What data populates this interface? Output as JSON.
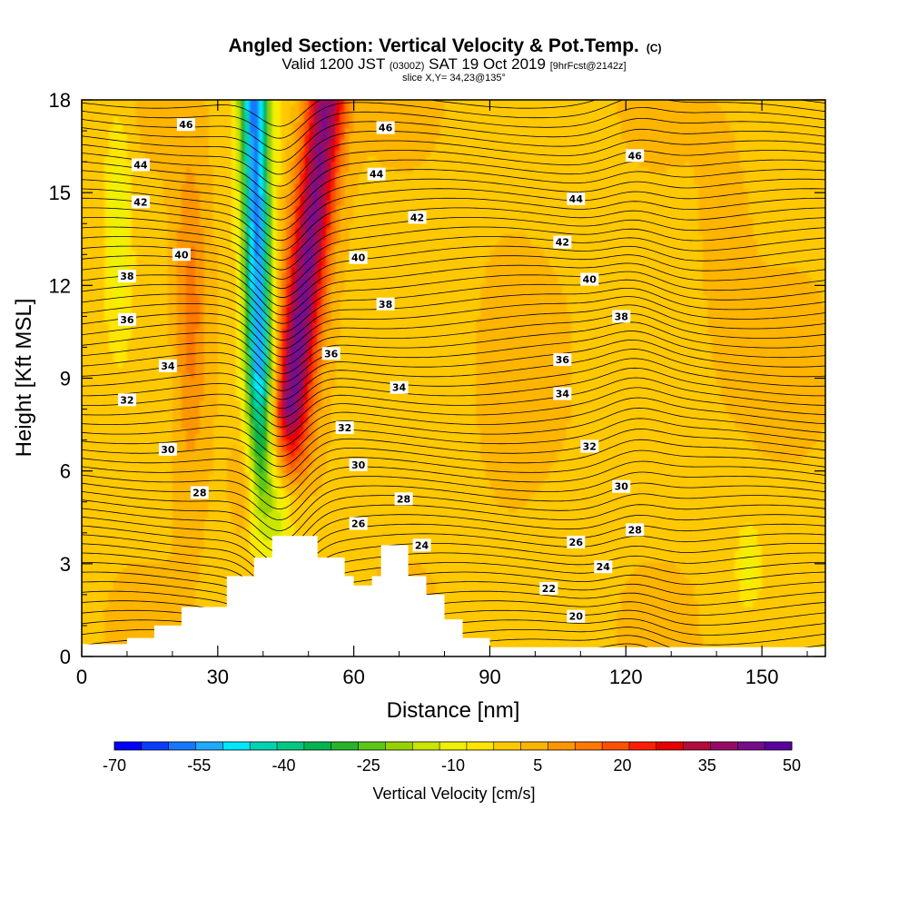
{
  "chart_data": {
    "type": "heatmap",
    "title": "Angled Section: Vertical Velocity & Pot.Temp.",
    "title_mark": "(C)",
    "subtitle_parts": [
      "Valid 1200 JST",
      "(0300Z)",
      "SAT 19 Oct 2019",
      "[9hrFcst@2142z]"
    ],
    "slice_label": "slice X,Y= 34,23@135°",
    "xlabel": "Distance [nm]",
    "ylabel": "Height [Kft MSL]",
    "xlim": [
      0,
      164
    ],
    "ylim": [
      0,
      18
    ],
    "x_ticks": [
      0,
      30,
      60,
      90,
      120,
      150
    ],
    "y_ticks": [
      0,
      3,
      6,
      9,
      12,
      15,
      18
    ],
    "colorbar": {
      "label": "Vertical Velocity [cm/s]",
      "tick_labels": [
        "-70",
        "-55",
        "-40",
        "-25",
        "-10",
        "5",
        "20",
        "35",
        "50"
      ],
      "levels": [
        -70,
        -65,
        -60,
        -55,
        -50,
        -45,
        -40,
        -35,
        -30,
        -25,
        -20,
        -15,
        -10,
        -5,
        0,
        5,
        10,
        15,
        20,
        25,
        30,
        35,
        40,
        45,
        50
      ],
      "colors": [
        "#0000ff",
        "#0a3cff",
        "#1478ff",
        "#1eaaff",
        "#00e6ff",
        "#00d2b4",
        "#00c882",
        "#00b450",
        "#28b428",
        "#5ac814",
        "#96d200",
        "#c8e600",
        "#f0f000",
        "#ffe600",
        "#ffc800",
        "#ffb400",
        "#ff9600",
        "#ff7800",
        "#ff5000",
        "#ff1e00",
        "#e60000",
        "#b40a3c",
        "#960a64",
        "#780a8c",
        "#5a00a0"
      ]
    },
    "terrain": [
      [
        0,
        0.4
      ],
      [
        10,
        0.4
      ],
      [
        10,
        0.6
      ],
      [
        16,
        0.6
      ],
      [
        16,
        1.0
      ],
      [
        22,
        1.0
      ],
      [
        22,
        1.6
      ],
      [
        32,
        1.6
      ],
      [
        32,
        2.6
      ],
      [
        38,
        2.6
      ],
      [
        38,
        3.2
      ],
      [
        42,
        3.2
      ],
      [
        42,
        3.9
      ],
      [
        52,
        3.9
      ],
      [
        52,
        3.2
      ],
      [
        58,
        3.2
      ],
      [
        58,
        2.6
      ],
      [
        60,
        2.6
      ],
      [
        60,
        2.3
      ],
      [
        64,
        2.3
      ],
      [
        64,
        2.6
      ],
      [
        66,
        2.6
      ],
      [
        66,
        3.6
      ],
      [
        72,
        3.6
      ],
      [
        72,
        2.6
      ],
      [
        76,
        2.6
      ],
      [
        76,
        2.0
      ],
      [
        80,
        2.0
      ],
      [
        80,
        1.2
      ],
      [
        84,
        1.2
      ],
      [
        84,
        0.6
      ],
      [
        90,
        0.6
      ],
      [
        90,
        0.3
      ],
      [
        164,
        0.3
      ],
      [
        164,
        0
      ]
    ],
    "theta_labels": [
      {
        "x": 23,
        "y": 17.2,
        "text": "46"
      },
      {
        "x": 67,
        "y": 17.1,
        "text": "46"
      },
      {
        "x": 122,
        "y": 16.2,
        "text": "46"
      },
      {
        "x": 13,
        "y": 15.9,
        "text": "44"
      },
      {
        "x": 65,
        "y": 15.6,
        "text": "44"
      },
      {
        "x": 109,
        "y": 14.8,
        "text": "44"
      },
      {
        "x": 13,
        "y": 14.7,
        "text": "42"
      },
      {
        "x": 74,
        "y": 14.2,
        "text": "42"
      },
      {
        "x": 106,
        "y": 13.4,
        "text": "42"
      },
      {
        "x": 22,
        "y": 13.0,
        "text": "40"
      },
      {
        "x": 61,
        "y": 12.9,
        "text": "40"
      },
      {
        "x": 112,
        "y": 12.2,
        "text": "40"
      },
      {
        "x": 10,
        "y": 12.3,
        "text": "38"
      },
      {
        "x": 67,
        "y": 11.4,
        "text": "38"
      },
      {
        "x": 119,
        "y": 11.0,
        "text": "38"
      },
      {
        "x": 10,
        "y": 10.9,
        "text": "36"
      },
      {
        "x": 55,
        "y": 9.8,
        "text": "36"
      },
      {
        "x": 106,
        "y": 9.6,
        "text": "36"
      },
      {
        "x": 19,
        "y": 9.4,
        "text": "34"
      },
      {
        "x": 70,
        "y": 8.7,
        "text": "34"
      },
      {
        "x": 106,
        "y": 8.5,
        "text": "34"
      },
      {
        "x": 10,
        "y": 8.3,
        "text": "32"
      },
      {
        "x": 58,
        "y": 7.4,
        "text": "32"
      },
      {
        "x": 112,
        "y": 6.8,
        "text": "32"
      },
      {
        "x": 19,
        "y": 6.7,
        "text": "30"
      },
      {
        "x": 61,
        "y": 6.2,
        "text": "30"
      },
      {
        "x": 119,
        "y": 5.5,
        "text": "30"
      },
      {
        "x": 26,
        "y": 5.3,
        "text": "28"
      },
      {
        "x": 71,
        "y": 5.1,
        "text": "28"
      },
      {
        "x": 122,
        "y": 4.1,
        "text": "28"
      },
      {
        "x": 61,
        "y": 4.3,
        "text": "26"
      },
      {
        "x": 109,
        "y": 3.7,
        "text": "26"
      },
      {
        "x": 75,
        "y": 3.6,
        "text": "24"
      },
      {
        "x": 115,
        "y": 2.9,
        "text": "24"
      },
      {
        "x": 103,
        "y": 2.2,
        "text": "22"
      },
      {
        "x": 109,
        "y": 1.3,
        "text": "20"
      }
    ]
  }
}
